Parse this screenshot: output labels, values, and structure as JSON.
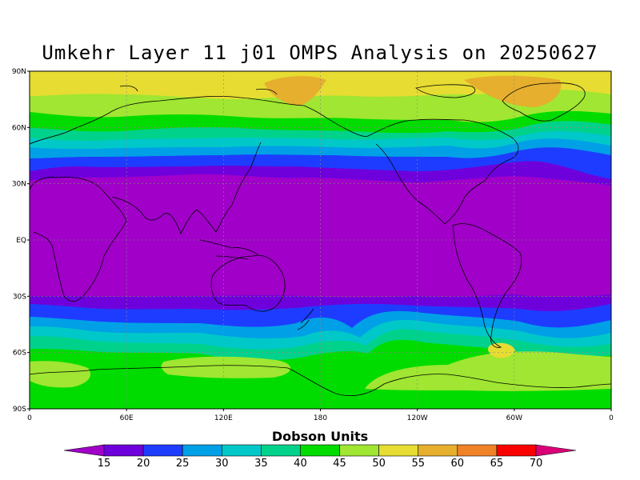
{
  "title": "Umkehr Layer 11 j01 OMPS Analysis on 20250627",
  "map": {
    "projection": "cylindrical equidistant",
    "lon_range": [
      0,
      360
    ],
    "lat_range": [
      -90,
      90
    ],
    "lat_ticks": [
      {
        "value": 90,
        "label": "90N"
      },
      {
        "value": 60,
        "label": "60N"
      },
      {
        "value": 30,
        "label": "30N"
      },
      {
        "value": 0,
        "label": "EQ"
      },
      {
        "value": -30,
        "label": "30S"
      },
      {
        "value": -60,
        "label": "60S"
      },
      {
        "value": -90,
        "label": "90S"
      }
    ],
    "lon_ticks": [
      {
        "value": 0,
        "label": "0"
      },
      {
        "value": 60,
        "label": "60E"
      },
      {
        "value": 120,
        "label": "120E"
      },
      {
        "value": 180,
        "label": "180"
      },
      {
        "value": 240,
        "label": "120W"
      },
      {
        "value": 300,
        "label": "60W"
      },
      {
        "value": 360,
        "label": "0"
      }
    ],
    "gridlines": "dotted"
  },
  "colorbar": {
    "title": "Dobson Units",
    "levels": [
      "15",
      "20",
      "25",
      "30",
      "35",
      "40",
      "45",
      "50",
      "55",
      "60",
      "65",
      "70"
    ],
    "colors": [
      "#a000c8",
      "#6e00dc",
      "#1e3cff",
      "#00a0e6",
      "#00c8c8",
      "#00d28c",
      "#00dc00",
      "#a0e632",
      "#e6dc32",
      "#e6af2d",
      "#f08228",
      "#fa0000",
      "#dc0078"
    ]
  }
}
